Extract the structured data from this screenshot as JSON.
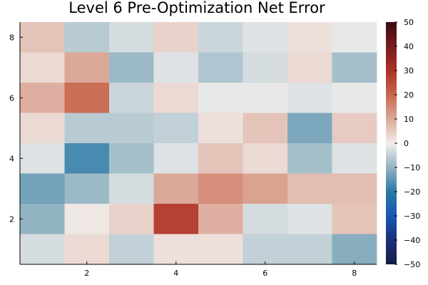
{
  "chart_data": {
    "type": "heatmap",
    "title": "Level 6 Pre-Optimization Net Error",
    "xlabel": "",
    "ylabel": "",
    "x_range": [
      0.5,
      8.5
    ],
    "y_range": [
      0.5,
      8.5
    ],
    "x_ticks": [
      2,
      4,
      6,
      8
    ],
    "y_ticks": [
      2,
      4,
      6,
      8
    ],
    "color_range": [
      -50,
      50
    ],
    "colorbar_ticks": [
      50,
      40,
      30,
      20,
      10,
      0,
      -10,
      -20,
      -30,
      -40,
      -50
    ],
    "colorbar_tick_labels": [
      "50",
      "40",
      "30",
      "20",
      "10",
      "0",
      "−10",
      "−20",
      "−30",
      "−40",
      "−50"
    ],
    "colormap": "balance",
    "grid": false,
    "rows_top_to_bottom": [
      {
        "y": 8,
        "values": [
          6,
          -6,
          -3,
          4,
          -4,
          -2,
          2,
          -1
        ]
      },
      {
        "y": 7,
        "values": [
          3,
          10,
          -9,
          -2,
          -7,
          -3,
          3,
          -8
        ]
      },
      {
        "y": 6,
        "values": [
          9,
          19,
          -4,
          3,
          -1,
          -1,
          -2,
          -1
        ]
      },
      {
        "y": 5,
        "values": [
          3,
          -6,
          -6,
          -5,
          2,
          6,
          -12,
          5
        ]
      },
      {
        "y": 4,
        "values": [
          -2,
          -17,
          -8,
          -2,
          6,
          3,
          -8,
          -2
        ]
      },
      {
        "y": 3,
        "values": [
          -13,
          -9,
          -3,
          10,
          14,
          11,
          7,
          7
        ]
      },
      {
        "y": 2,
        "values": [
          -10,
          1,
          4,
          27,
          9,
          -3,
          -2,
          6
        ]
      },
      {
        "y": 1,
        "values": [
          -3,
          3,
          -5,
          2,
          2,
          -5,
          -5,
          -11
        ]
      }
    ]
  }
}
